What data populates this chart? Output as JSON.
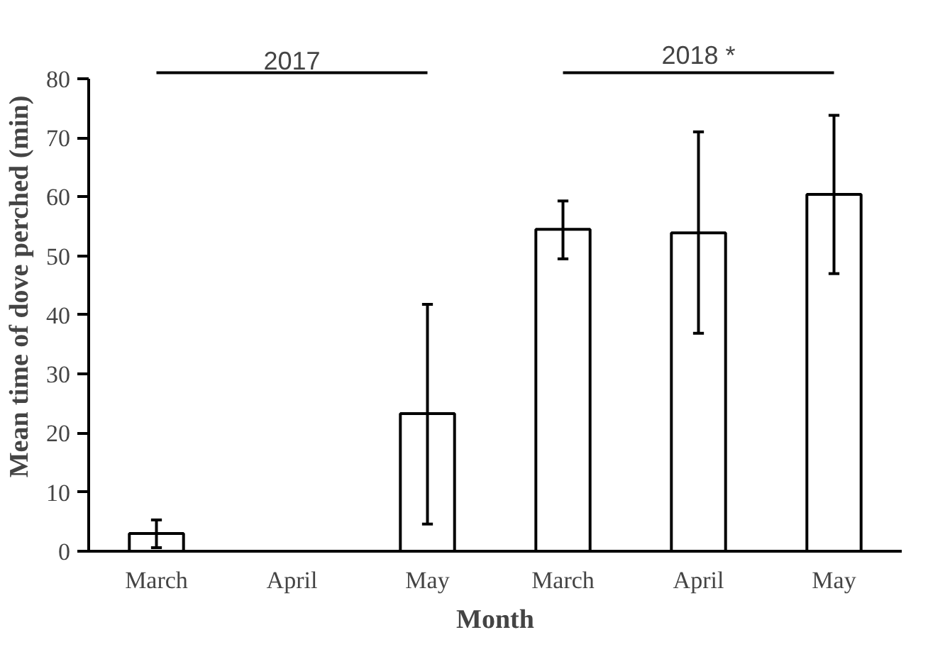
{
  "chart_data": {
    "type": "bar",
    "xlabel": "Month",
    "ylabel": "Mean time of dove perched (min)",
    "categories": [
      "March",
      "April",
      "May",
      "March",
      "April",
      "May"
    ],
    "values": [
      3.0,
      0,
      23.3,
      54.5,
      53.9,
      60.4
    ],
    "errors": [
      [
        0.6,
        5.3
      ],
      null,
      [
        4.6,
        41.8
      ],
      [
        49.5,
        59.3
      ],
      [
        36.9,
        71.0
      ],
      [
        47.0,
        73.8
      ]
    ],
    "color": "#ffffff",
    "ylim": [
      0,
      80
    ],
    "yticks": [
      0,
      10,
      20,
      30,
      40,
      50,
      60,
      70,
      80
    ],
    "grid": false,
    "annotations": [
      "2017",
      "2018 *"
    ]
  }
}
